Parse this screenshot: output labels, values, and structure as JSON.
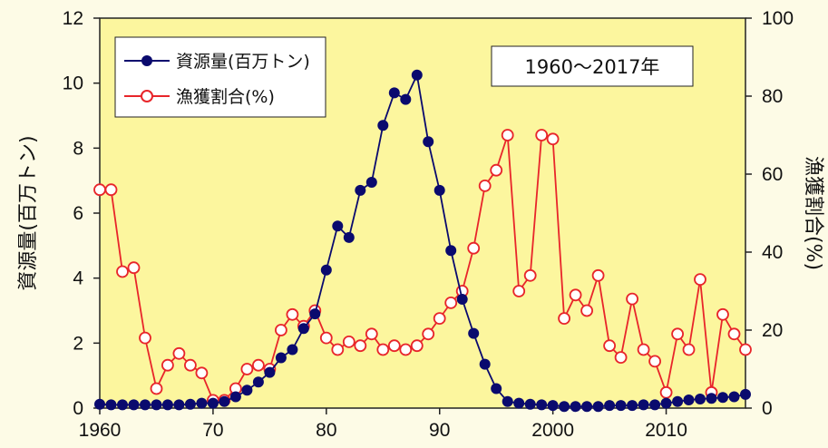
{
  "chart_data": {
    "type": "line",
    "annotation": "1960～2017年",
    "x_ticks": [
      "1960",
      "70",
      "80",
      "90",
      "2000",
      "2010"
    ],
    "x_tick_values": [
      1960,
      1970,
      1980,
      1990,
      2000,
      2010
    ],
    "xlim": [
      1960,
      2017
    ],
    "y_left": {
      "label": "資源量(百万トン)",
      "ticks": [
        "0",
        "2",
        "4",
        "6",
        "8",
        "10",
        "12"
      ],
      "ylim": [
        0,
        12
      ]
    },
    "y_right": {
      "label": "漁獲割合(%)",
      "ticks": [
        "0",
        "20",
        "40",
        "60",
        "80",
        "100"
      ],
      "ylim": [
        0,
        100
      ]
    },
    "legend_position": "top-left",
    "grid": false,
    "x": [
      1960,
      1961,
      1962,
      1963,
      1964,
      1965,
      1966,
      1967,
      1968,
      1969,
      1970,
      1971,
      1972,
      1973,
      1974,
      1975,
      1976,
      1977,
      1978,
      1979,
      1980,
      1981,
      1982,
      1983,
      1984,
      1985,
      1986,
      1987,
      1988,
      1989,
      1990,
      1991,
      1992,
      1993,
      1994,
      1995,
      1996,
      1997,
      1998,
      1999,
      2000,
      2001,
      2002,
      2003,
      2004,
      2005,
      2006,
      2007,
      2008,
      2009,
      2010,
      2011,
      2012,
      2013,
      2014,
      2015,
      2016,
      2017
    ],
    "series": [
      {
        "name": "資源量(百万トン)",
        "axis": "left",
        "color": "#0a0a6e",
        "marker": "filled-circle",
        "values": [
          0.12,
          0.1,
          0.1,
          0.1,
          0.1,
          0.1,
          0.1,
          0.1,
          0.12,
          0.15,
          0.15,
          0.2,
          0.35,
          0.55,
          0.8,
          1.1,
          1.55,
          1.8,
          2.45,
          2.9,
          4.25,
          5.6,
          5.25,
          6.7,
          6.95,
          8.7,
          9.7,
          9.5,
          10.25,
          8.2,
          6.7,
          4.85,
          3.35,
          2.3,
          1.35,
          0.6,
          0.2,
          0.15,
          0.12,
          0.1,
          0.08,
          0.05,
          0.05,
          0.05,
          0.05,
          0.08,
          0.08,
          0.08,
          0.1,
          0.1,
          0.15,
          0.2,
          0.25,
          0.28,
          0.3,
          0.33,
          0.35,
          0.42
        ]
      },
      {
        "name": "漁獲割合(%)",
        "axis": "right",
        "color": "#e8252a",
        "marker": "open-circle",
        "values": [
          56,
          56,
          35,
          36,
          18,
          5,
          11,
          14,
          11,
          9,
          2,
          2,
          5,
          10,
          11,
          10,
          20,
          24,
          21,
          25,
          18,
          15,
          17,
          16,
          19,
          15,
          16,
          15,
          16,
          19,
          23,
          27,
          30,
          41,
          57,
          61,
          70,
          30,
          34,
          70,
          69,
          23,
          29,
          25,
          34,
          16,
          13,
          28,
          15,
          12,
          4,
          19,
          15,
          33,
          4,
          24,
          19,
          15
        ]
      }
    ]
  }
}
